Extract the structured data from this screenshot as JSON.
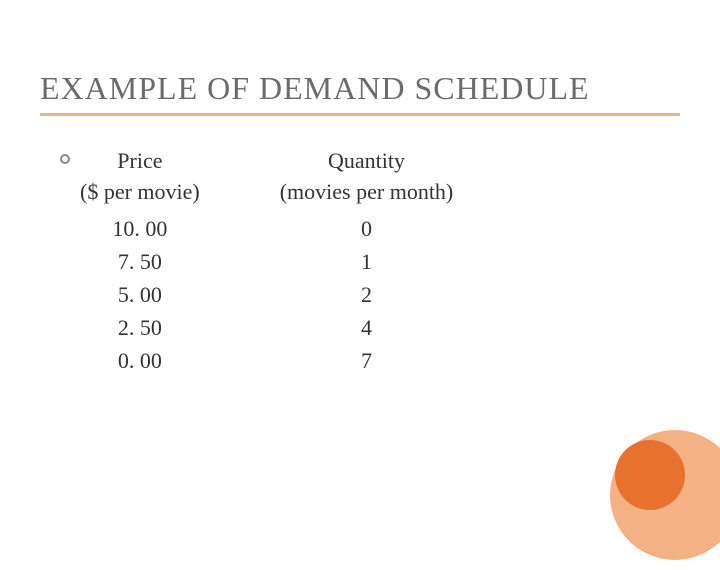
{
  "title": "EXAMPLE OF DEMAND SCHEDULE",
  "colors": {
    "title_text": "#6b6b6b",
    "underline": "#f4b183",
    "body_text": "#333333",
    "circle_outer": "#f4b183",
    "circle_inner": "#e8712e",
    "background": "#ffffff"
  },
  "typography": {
    "title_fontsize": 32,
    "body_fontsize": 22,
    "font_family": "Georgia, serif"
  },
  "table": {
    "col1": {
      "header": "Price",
      "subheader": "($ per movie)",
      "values": [
        "10. 00",
        "7. 50",
        "5. 00",
        "2. 50",
        "0. 00"
      ]
    },
    "col2": {
      "header": "Quantity",
      "subheader": "(movies per month)",
      "values": [
        "0",
        "1",
        "2",
        "4",
        "7"
      ]
    }
  }
}
